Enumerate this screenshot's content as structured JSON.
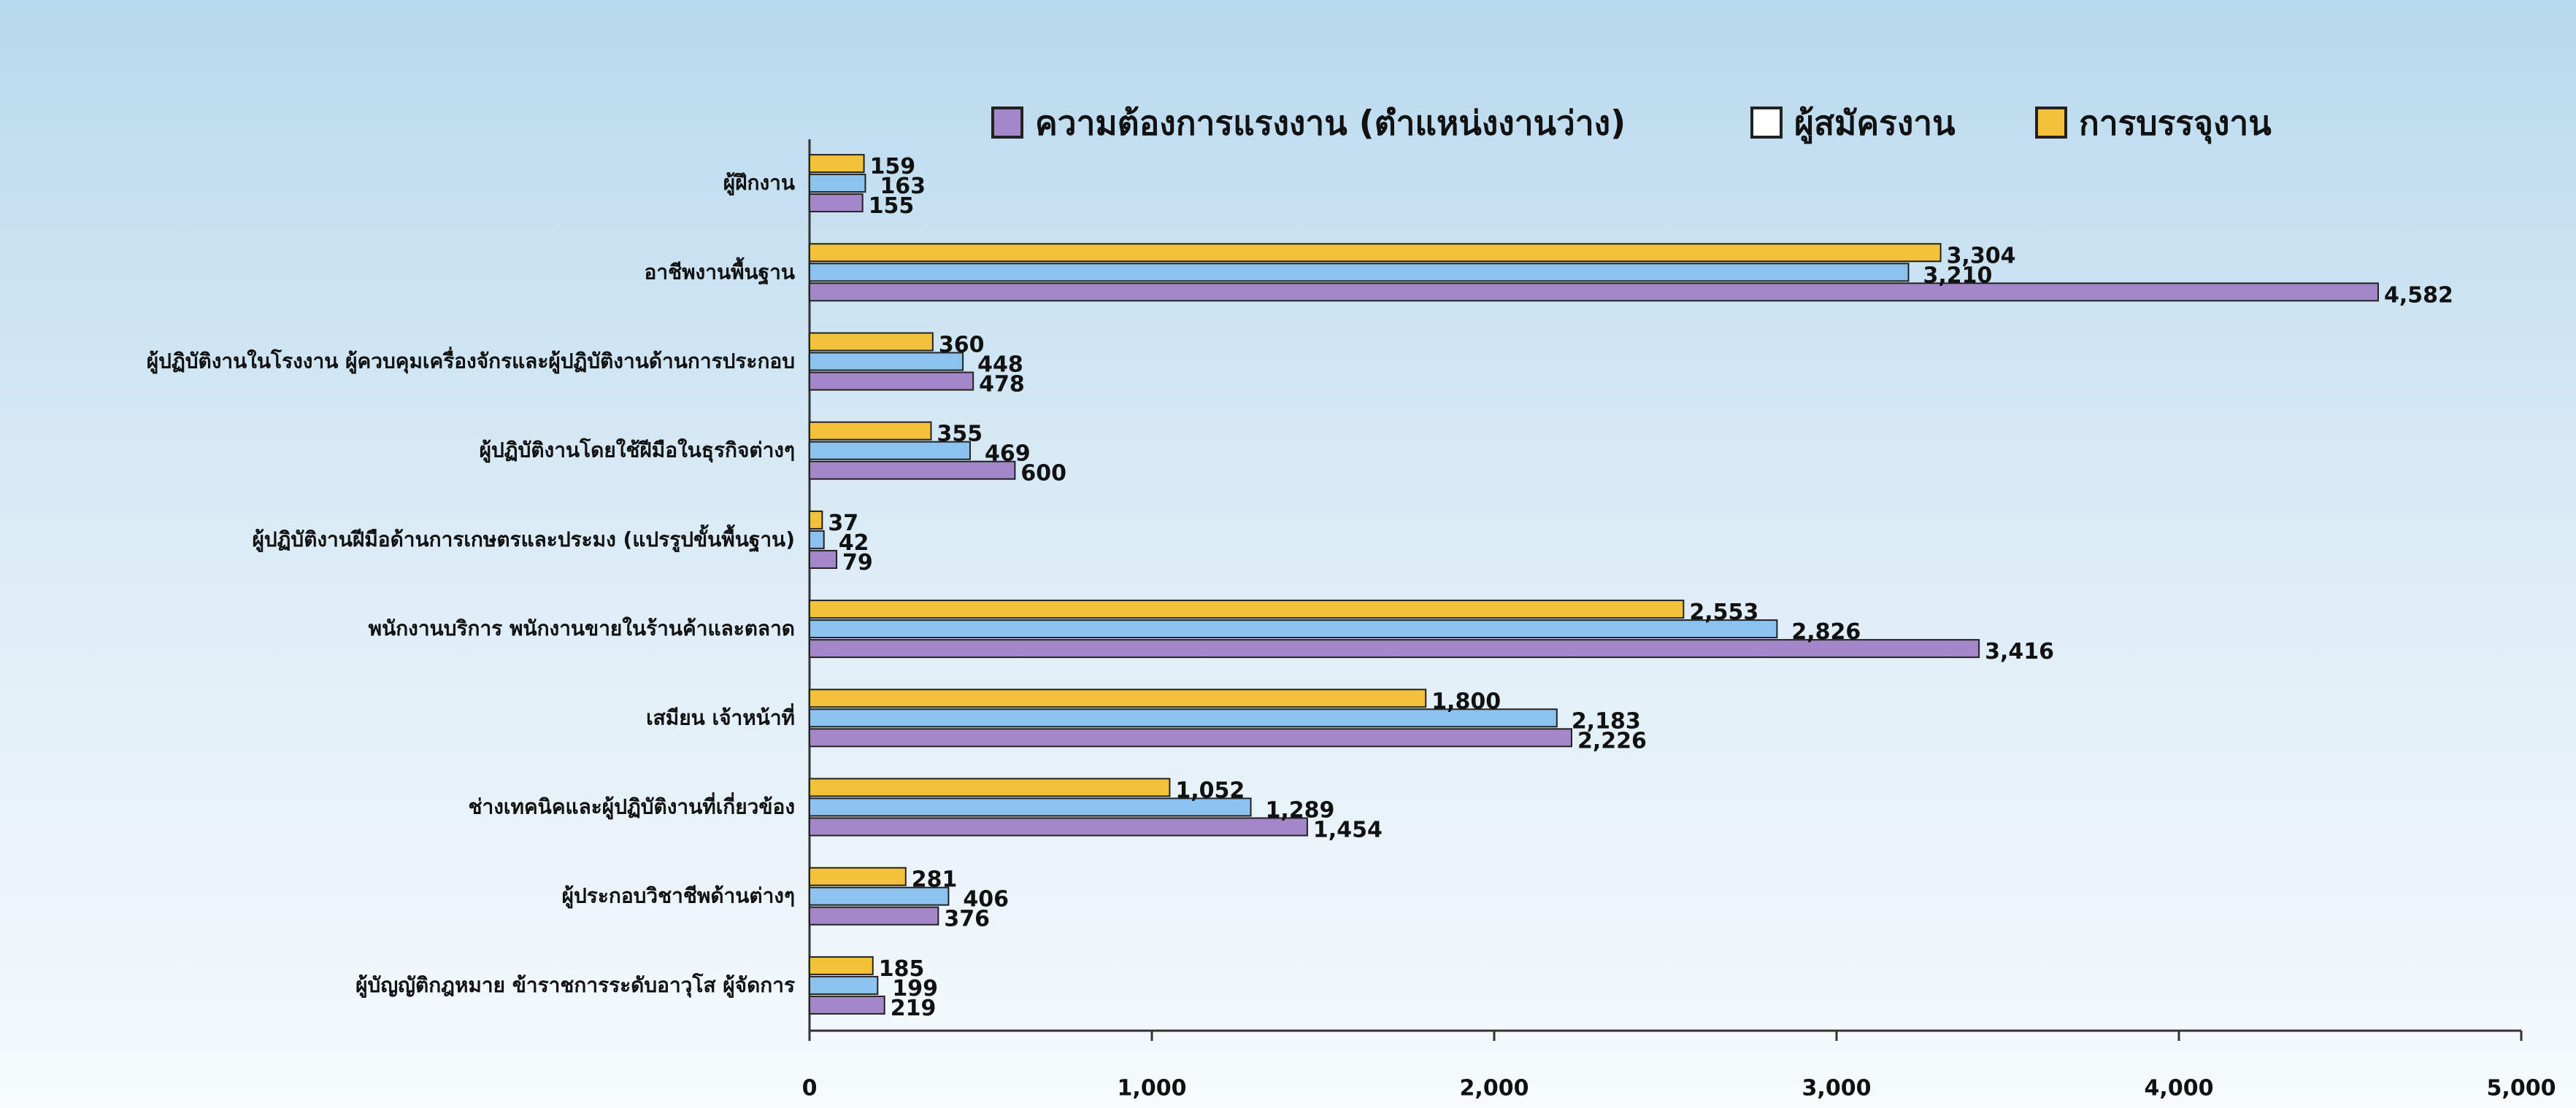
{
  "chart_data": {
    "type": "bar",
    "orientation": "horizontal",
    "categories": [
      "ผู้ฝึกงาน",
      "อาชีพงานพื้นฐาน",
      "ผู้ปฏิบัติงานในโรงงาน ผู้ควบคุมเครื่องจักรและผู้ปฏิบัติงานด้านการประกอบ",
      "ผู้ปฏิบัติงานโดยใช้ฝีมือในธุรกิจต่างๆ",
      "ผู้ปฏิบัติงานฝีมือด้านการเกษตรและประมง  (แปรรูปขั้นพื้นฐาน)",
      "พนักงานบริการ พนักงานขายในร้านค้าและตลาด",
      "เสมียน เจ้าหน้าที่",
      "ช่างเทคนิคและผู้ปฏิบัติงานที่เกี่ยวข้อง",
      "ผู้ประกอบวิชาชีพด้านต่างๆ",
      "ผู้บัญญัติกฎหมาย ข้าราชการระดับอาวุโส ผู้จัดการ"
    ],
    "series": [
      {
        "name": "ความต้องการแรงงาน (ตำแหน่งงานว่าง)",
        "color": "#a487c8",
        "values": [
          155,
          4582,
          478,
          600,
          79,
          3416,
          2226,
          1454,
          376,
          219
        ],
        "value_labels": [
          "155",
          "4,582",
          "478",
          "600",
          "79",
          "3,416",
          "2,226",
          "1,454",
          "376",
          "219"
        ]
      },
      {
        "name": "ผู้สมัครงาน",
        "color": "#8cc2ee",
        "values": [
          163,
          3210,
          448,
          469,
          42,
          2826,
          2183,
          1289,
          406,
          199
        ],
        "value_labels": [
          "163",
          "3,210",
          "448",
          "469",
          "42",
          "2,826",
          "2,183",
          "1,289",
          "406",
          "199"
        ]
      },
      {
        "name": "การบรรจุงาน",
        "color": "#f3c23a",
        "values": [
          159,
          3304,
          360,
          355,
          37,
          2553,
          1800,
          1052,
          281,
          185
        ],
        "value_labels": [
          "159",
          "3,304",
          "360",
          "355",
          "37",
          "2,553",
          "1,800",
          "1,052",
          "281",
          "185"
        ]
      }
    ],
    "xlim": [
      0,
      5000
    ],
    "xticks": [
      0,
      {
        "value": 1000,
        "label": "1,000"
      },
      {
        "value": 2000,
        "label": "2,000"
      },
      {
        "value": 3000,
        "label": "3,000"
      },
      {
        "value": 4000,
        "label": "4,000"
      },
      {
        "value": 5000,
        "label": "5,000"
      }
    ],
    "legend": "top"
  }
}
